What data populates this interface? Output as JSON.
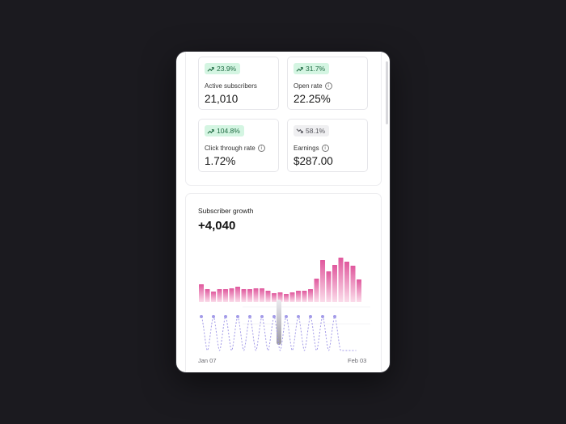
{
  "stats": [
    {
      "id": "active-subscribers",
      "change": "23.9%",
      "trend": "up",
      "label": "Active subscribers",
      "value": "21,010",
      "info": false
    },
    {
      "id": "open-rate",
      "change": "31.7%",
      "trend": "up",
      "label": "Open rate",
      "value": "22.25%",
      "info": true
    },
    {
      "id": "click-through-rate",
      "change": "104.8%",
      "trend": "up",
      "label": "Click through rate",
      "value": "1.72%",
      "info": true
    },
    {
      "id": "earnings",
      "change": "58.1%",
      "trend": "down",
      "label": "Earnings",
      "value": "$287.00",
      "info": true
    }
  ],
  "growth": {
    "title": "Subscriber growth",
    "value": "+4,040",
    "start_label": "Jan 07",
    "end_label": "Feb 03"
  },
  "chart_data": {
    "type": "bar",
    "bar_values": [
      22,
      16,
      13,
      16,
      16,
      17,
      19,
      16,
      16,
      17,
      17,
      14,
      11,
      12,
      10,
      12,
      14,
      14,
      16,
      29,
      52,
      38,
      46,
      55,
      50,
      45,
      28
    ],
    "wave_peak_index": [
      0,
      2,
      4,
      6,
      8,
      10,
      12,
      14,
      16,
      18,
      20,
      22
    ],
    "colors": {
      "bar_top": "#e0589d",
      "bar_bottom": "#fbdcea",
      "wave": "#a39be8"
    }
  },
  "colors": {
    "badge_up_bg": "#d4f5e2",
    "badge_up_text": "#1f6b43",
    "badge_down_bg": "#efeff1"
  }
}
